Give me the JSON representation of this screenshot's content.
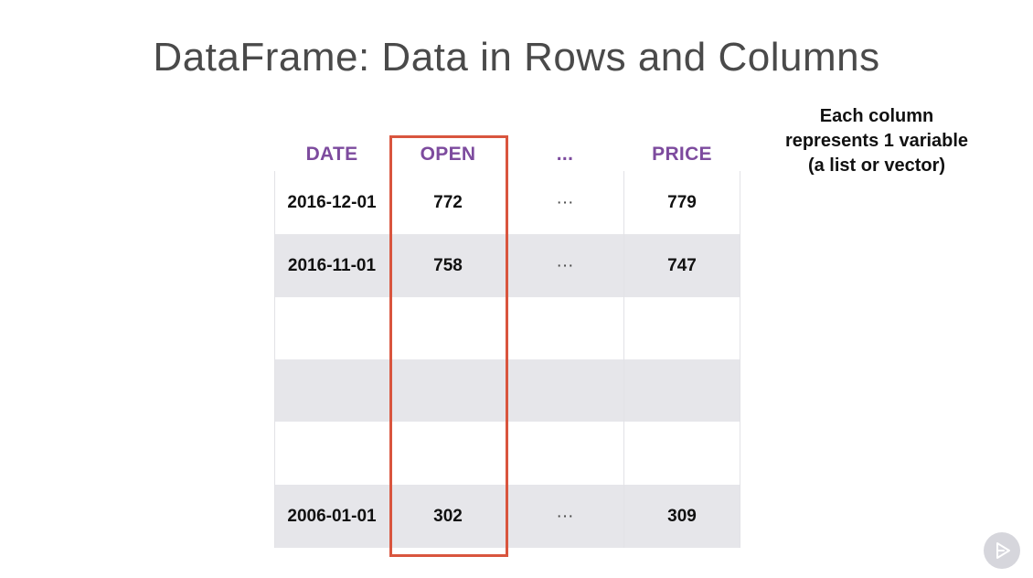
{
  "slide": {
    "title": "DataFrame: Data in Rows and Columns",
    "note_lines": [
      "Each column",
      "represents 1 variable",
      "(a list or vector)"
    ]
  },
  "table": {
    "headers": [
      "DATE",
      "OPEN",
      "...",
      "PRICE"
    ],
    "rows": [
      [
        "2016-12-01",
        "772",
        "···",
        "779"
      ],
      [
        "2016-11-01",
        "758",
        "···",
        "747"
      ],
      [
        "",
        "",
        "",
        ""
      ],
      [
        "",
        "",
        "",
        ""
      ],
      [
        "",
        "",
        "",
        ""
      ],
      [
        "2006-01-01",
        "302",
        "···",
        "309"
      ]
    ]
  },
  "colors": {
    "header_text": "#7d4b9e",
    "highlight_border": "#d9553e",
    "stripe": "#e6e6ea"
  },
  "icons": {
    "corner": "play-icon"
  }
}
